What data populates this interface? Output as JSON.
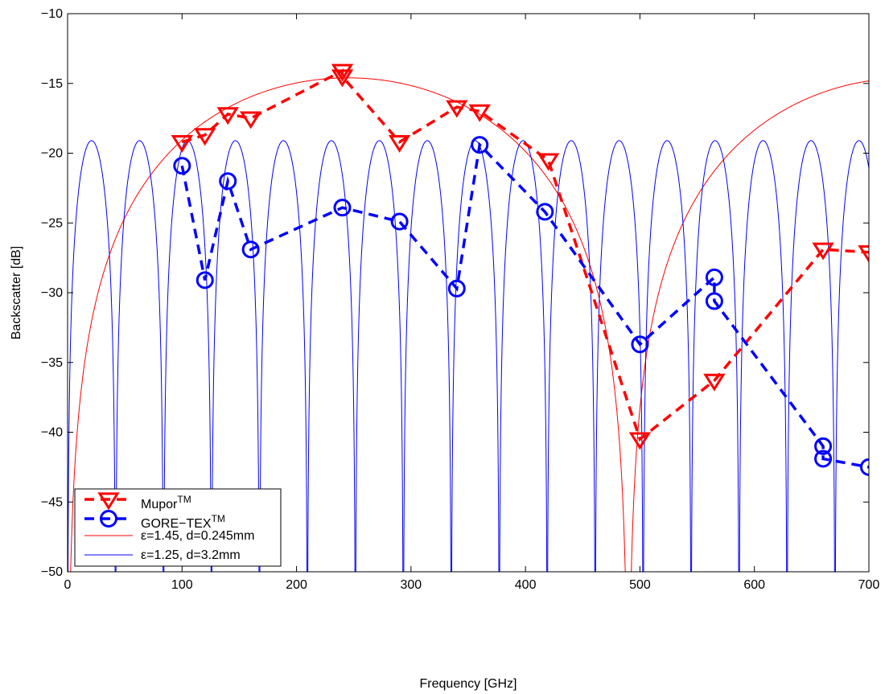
{
  "chart_data": {
    "type": "line",
    "xlabel": "Frequency [GHz]",
    "ylabel": "Backscatter [dB]",
    "xlim": [
      0,
      700
    ],
    "ylim": [
      -50,
      -10
    ],
    "xticks": [
      "0",
      "100",
      "200",
      "300",
      "400",
      "500",
      "600",
      "700"
    ],
    "yticks": [
      "−50",
      "−45",
      "−40",
      "−35",
      "−30",
      "−25",
      "−20",
      "−15",
      "−10"
    ],
    "grid": false,
    "legend_position": "bottom-left",
    "series": [
      {
        "name": "Mupor",
        "name_sup": "TM",
        "style": "dashed-marker-triangle-down",
        "color": "#ff0000",
        "x": [
          100,
          120,
          140,
          160,
          240,
          240,
          290,
          340,
          360,
          420,
          500,
          565,
          660,
          700
        ],
        "y": [
          -19.2,
          -18.7,
          -17.2,
          -17.5,
          -14.1,
          -14.5,
          -19.2,
          -16.7,
          -17.0,
          -20.5,
          -40.5,
          -36.3,
          -26.9,
          -27.1
        ]
      },
      {
        "name": "GORE−TEX",
        "name_sup": "TM",
        "style": "dashed-marker-circle",
        "color": "#0000ff",
        "x": [
          100,
          120,
          140,
          160,
          240,
          290,
          340,
          360,
          417,
          500,
          565,
          565,
          660,
          660,
          700
        ],
        "y": [
          -20.9,
          -29.1,
          -22.0,
          -26.9,
          -23.9,
          -24.9,
          -29.7,
          -19.4,
          -24.2,
          -33.7,
          -28.9,
          -30.6,
          -41.0,
          -41.9,
          -42.5
        ]
      },
      {
        "name": "ε=1.45, d=0.245mm",
        "style": "thin-line-model",
        "color": "#ff0000",
        "model": {
          "peak_db": -14.6,
          "period_ghz": 489.8,
          "floor_db": -60
        }
      },
      {
        "name": "ε=1.25, d=3.2mm",
        "style": "thin-line-model",
        "color": "#0000ff",
        "model": {
          "peak_db": -19.1,
          "period_ghz": 41.9,
          "floor_db": -60
        }
      }
    ]
  }
}
